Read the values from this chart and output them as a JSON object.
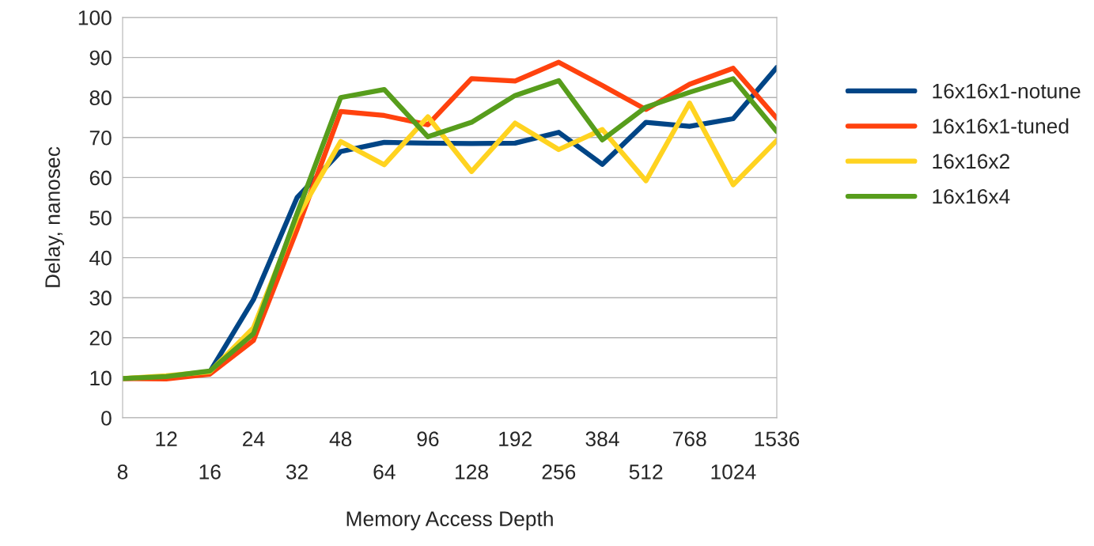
{
  "chart_data": {
    "type": "line",
    "xlabel": "Memory Access Depth",
    "ylabel": "Delay, nanosec",
    "categories": [
      "8",
      "12",
      "16",
      "24",
      "32",
      "48",
      "64",
      "96",
      "128",
      "192",
      "256",
      "384",
      "512",
      "768",
      "1024",
      "1536"
    ],
    "series": [
      {
        "name": "16x16x1-notune",
        "color": "#004586",
        "values": [
          9.8,
          10.2,
          11.5,
          29.5,
          55,
          66.5,
          68.8,
          68.6,
          68.5,
          68.6,
          71.3,
          63.3,
          73.8,
          72.8,
          74.7,
          87.5
        ]
      },
      {
        "name": "16x16x1-tuned",
        "color": "#ff420e",
        "values": [
          9.8,
          9.7,
          10.9,
          19.3,
          47,
          76.5,
          75.5,
          73.2,
          84.7,
          84.1,
          88.8,
          83,
          77,
          83.3,
          87.3,
          74.8
        ]
      },
      {
        "name": "16x16x2",
        "color": "#ffd320",
        "values": [
          9.8,
          10.5,
          11.5,
          22.5,
          50,
          69,
          63.2,
          75.2,
          61.5,
          73.6,
          67,
          72,
          59.2,
          78.6,
          58.2,
          69.3
        ]
      },
      {
        "name": "16x16x4",
        "color": "#579d1c",
        "values": [
          9.8,
          10.3,
          11.7,
          21,
          51,
          80,
          82,
          70.2,
          73.8,
          80.5,
          84.2,
          69.4,
          77.6,
          81.3,
          84.7,
          71.5
        ]
      }
    ],
    "ylim": [
      0,
      100
    ],
    "yticks": [
      0,
      10,
      20,
      30,
      40,
      50,
      60,
      70,
      80,
      90,
      100
    ],
    "grid": "y",
    "legend": "right",
    "marker": "none",
    "line_style": "solid"
  }
}
